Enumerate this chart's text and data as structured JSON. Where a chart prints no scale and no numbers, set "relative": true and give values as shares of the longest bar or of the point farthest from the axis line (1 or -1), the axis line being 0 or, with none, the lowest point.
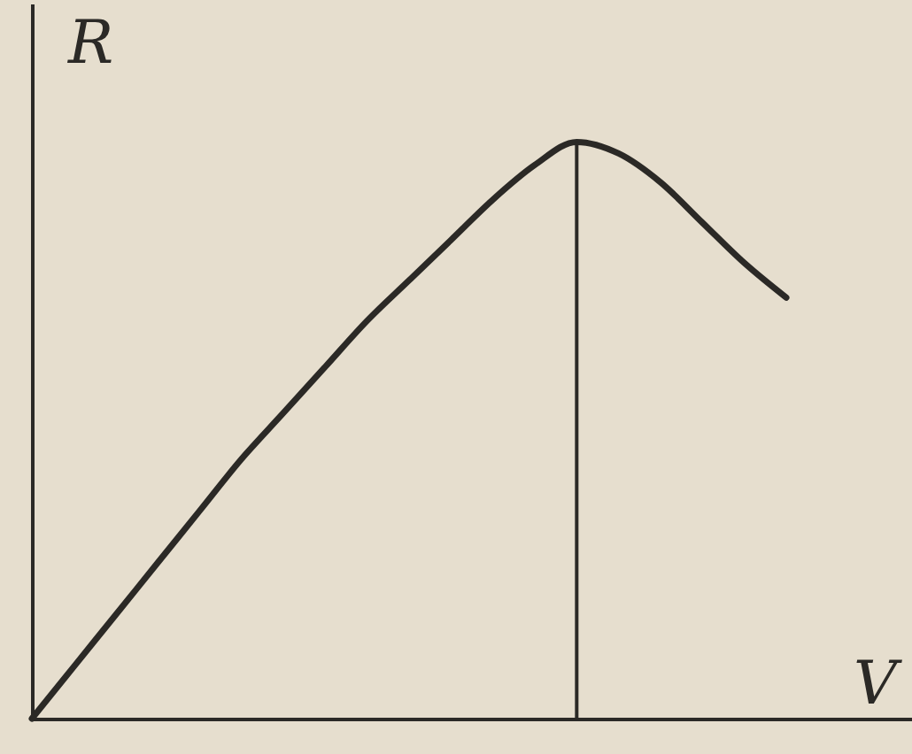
{
  "chart_data": {
    "type": "line",
    "relative": true,
    "xlabel": "V",
    "ylabel": "R",
    "categories": [
      null,
      null,
      null,
      null,
      null,
      null,
      null,
      null,
      null,
      null,
      null,
      null,
      null,
      null,
      null,
      null,
      null,
      null,
      null,
      null,
      null,
      null
    ],
    "series": [
      {
        "color": "#2b2926",
        "values": [
          0,
          0.09,
          0.18,
          0.27,
          0.36,
          0.45,
          0.53,
          0.61,
          0.69,
          0.76,
          0.83,
          0.9,
          0.96,
          1,
          0.98,
          0.93,
          0.86,
          0.79,
          0.73,
          null,
          null,
          null
        ]
      }
    ],
    "grid": false,
    "marker": "none",
    "line_style": "solid"
  }
}
